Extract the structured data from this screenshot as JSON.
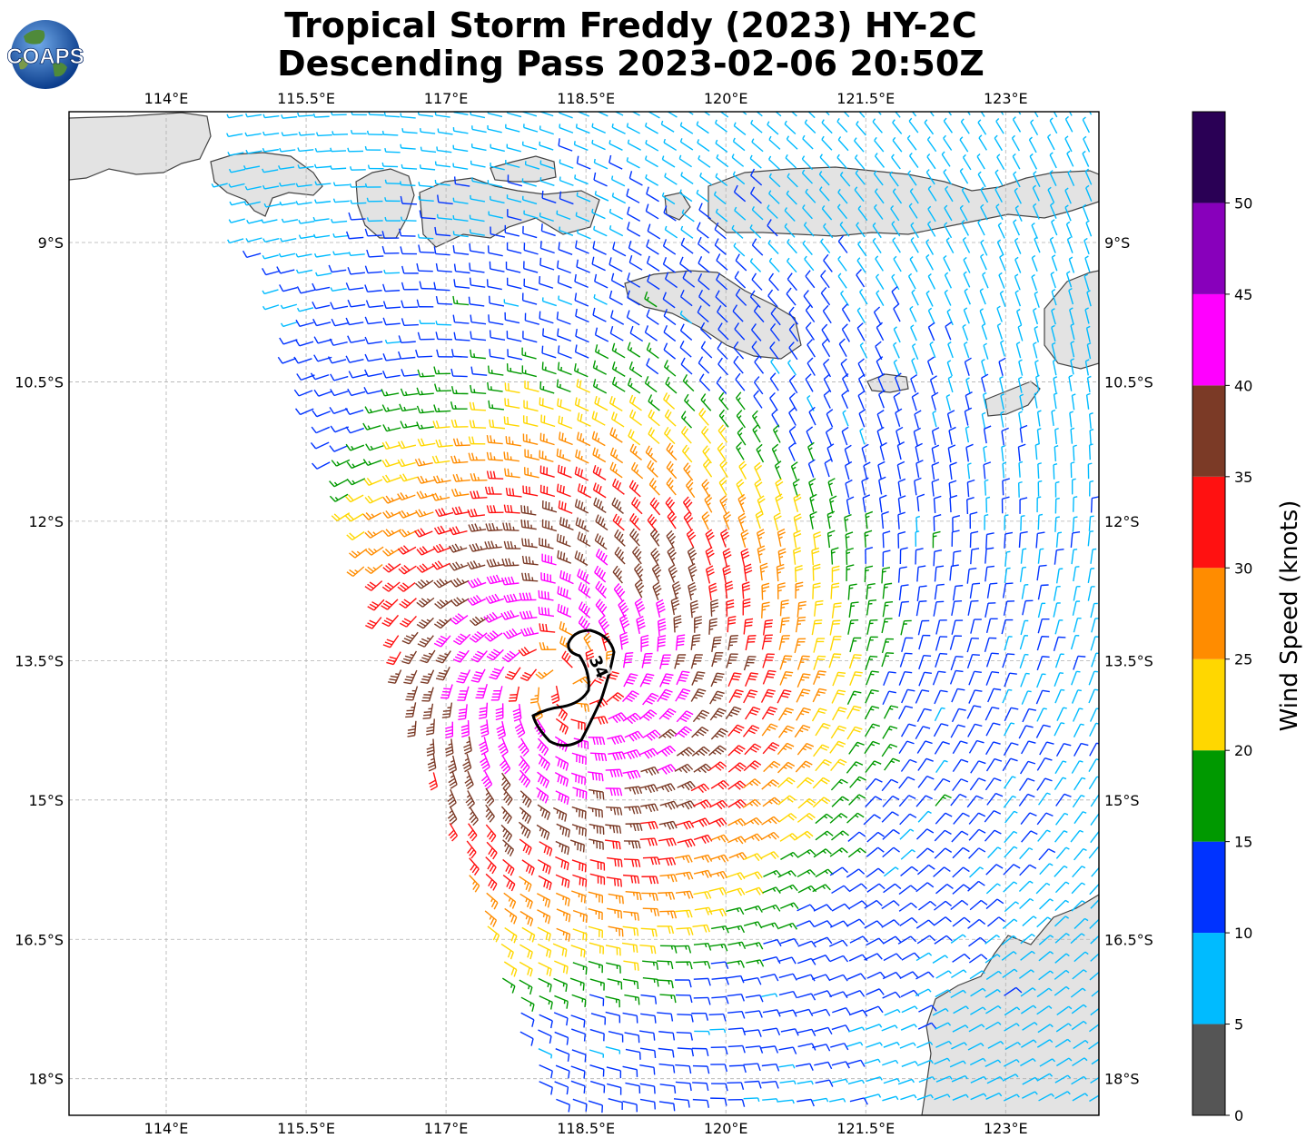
{
  "title": {
    "line1": "Tropical Storm Freddy (2023) HY-2C",
    "line2": "Descending Pass 2023-02-06 20:50Z"
  },
  "logo": {
    "text": "COAPS",
    "icon": "globe-icon"
  },
  "map": {
    "lon_ticks": [
      "114°E",
      "115.5°E",
      "117°E",
      "118.5°E",
      "120°E",
      "121.5°E",
      "123°E"
    ],
    "lat_ticks": [
      "9°S",
      "10.5°S",
      "12°S",
      "13.5°S",
      "15°S",
      "16.5°S",
      "18°S"
    ],
    "contour_label": "34",
    "storm_center": {
      "lon": 118.3,
      "lat": -13.7
    }
  },
  "colorbar": {
    "label": "Wind Speed (knots)",
    "ticks": [
      "0",
      "5",
      "10",
      "15",
      "20",
      "25",
      "30",
      "35",
      "40",
      "45",
      "50"
    ],
    "colors": [
      "#555555",
      "#00bbff",
      "#0033ff",
      "#009900",
      "#ffd700",
      "#ff8c00",
      "#ff1111",
      "#7b3a26",
      "#ff00ff",
      "#8800bb",
      "#2a0055"
    ]
  }
}
